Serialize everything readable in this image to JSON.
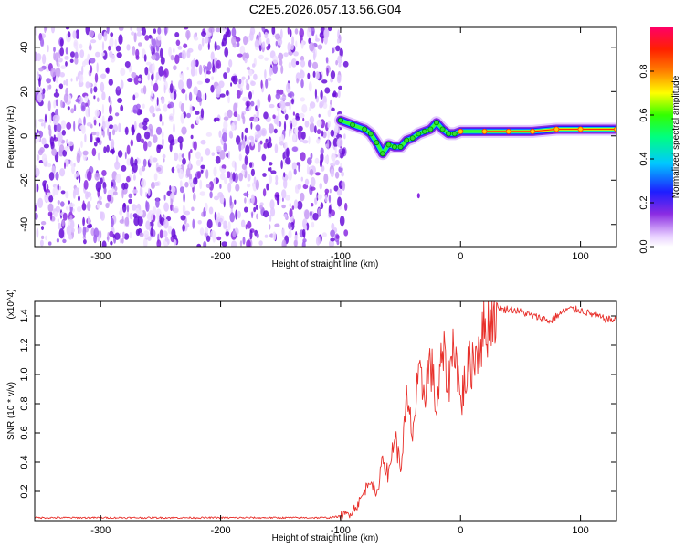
{
  "title": "C2E5.2026.057.13.56.G04",
  "chart_data": [
    {
      "type": "heatmap",
      "title": "C2E5.2026.057.13.56.G04",
      "xlabel": "Height of straight line (km)",
      "ylabel": "Frequency (Hz)",
      "xlim": [
        -355,
        130
      ],
      "ylim": [
        -50,
        49
      ],
      "xticks": [
        -300,
        -200,
        -100,
        0,
        100
      ],
      "xtick_labels": [
        "-300",
        "-200",
        "-100",
        "0",
        "100"
      ],
      "yticks": [
        -40,
        -20,
        0,
        20,
        40
      ],
      "ytick_labels": [
        "-40",
        "-20",
        "0",
        "20",
        "40"
      ],
      "noise_region_x": [
        -355,
        -100
      ],
      "signal_track": {
        "x": [
          -100,
          -90,
          -80,
          -75,
          -70,
          -65,
          -60,
          -55,
          -50,
          -45,
          -40,
          -35,
          -30,
          -25,
          -20,
          -15,
          -10,
          -5,
          0,
          20,
          40,
          60,
          80,
          100,
          130
        ],
        "y": [
          7,
          5,
          3,
          1,
          -3,
          -8,
          -4,
          -5,
          -5,
          -2,
          -1,
          1,
          2,
          3,
          6,
          3,
          1,
          1,
          2,
          2,
          2,
          2,
          3,
          3,
          3
        ]
      },
      "colorbar": {
        "label": "Normalized spectral amplitude",
        "range": [
          0,
          1
        ],
        "ticks": [
          0.0,
          0.2,
          0.4,
          0.6,
          0.8
        ],
        "tick_labels": [
          "0.0",
          "0.2",
          "0.4",
          "0.6",
          "0.8"
        ]
      }
    },
    {
      "type": "line",
      "xlabel": "Height of straight line (km)",
      "ylabel": "SNR (10 * v/v)",
      "y_multiplier": "(x10^4)",
      "xlim": [
        -355,
        130
      ],
      "ylim": [
        0,
        1.5
      ],
      "xticks": [
        -300,
        -200,
        -100,
        0,
        100
      ],
      "xtick_labels": [
        "-300",
        "-200",
        "-100",
        "0",
        "100"
      ],
      "yticks": [
        0.2,
        0.4,
        0.6,
        0.8,
        1.0,
        1.2,
        1.4
      ],
      "ytick_labels": [
        "0.2",
        "0.4",
        "0.6",
        "0.8",
        "1.0",
        "1.2",
        "1.4"
      ],
      "series": [
        {
          "name": "SNR",
          "color": "#e8302b",
          "x": [
            -355,
            -300,
            -250,
            -200,
            -150,
            -110,
            -100,
            -95,
            -90,
            -85,
            -80,
            -75,
            -70,
            -65,
            -60,
            -55,
            -50,
            -45,
            -40,
            -35,
            -30,
            -25,
            -20,
            -15,
            -10,
            -5,
            0,
            5,
            10,
            15,
            20,
            25,
            30,
            35,
            40,
            50,
            60,
            70,
            75,
            80,
            90,
            100,
            110,
            120,
            130
          ],
          "y": [
            0.02,
            0.02,
            0.02,
            0.02,
            0.02,
            0.02,
            0.03,
            0.04,
            0.07,
            0.12,
            0.2,
            0.3,
            0.15,
            0.45,
            0.3,
            0.6,
            0.35,
            0.8,
            0.6,
            0.95,
            0.9,
            1.1,
            0.75,
            1.15,
            0.95,
            1.25,
            0.8,
            1.0,
            1.1,
            1.2,
            1.3,
            1.4,
            1.47,
            1.44,
            1.45,
            1.43,
            1.4,
            1.38,
            1.36,
            1.4,
            1.45,
            1.44,
            1.41,
            1.38,
            1.37
          ]
        }
      ]
    }
  ]
}
